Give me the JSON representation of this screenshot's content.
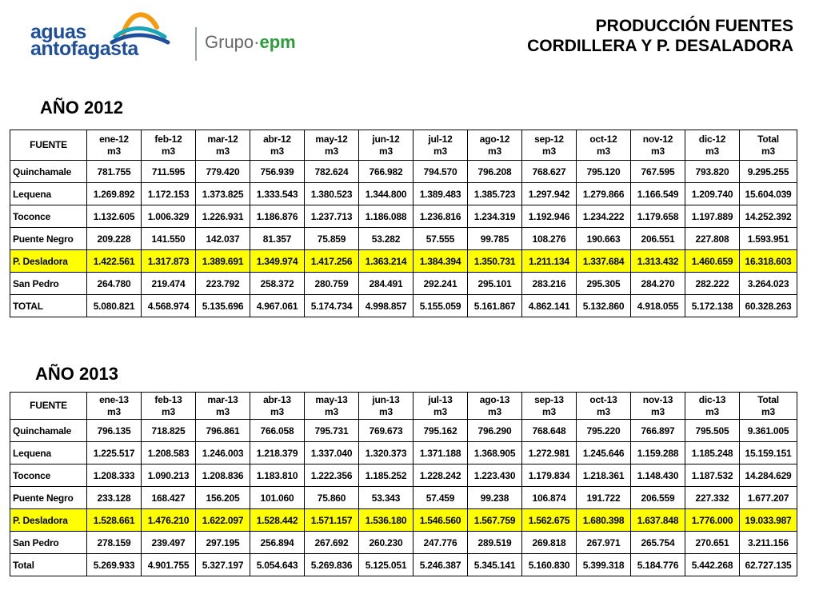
{
  "header": {
    "brand_line1": "aguas",
    "brand_line2": "antofagasta",
    "group_prefix": "Grupo·",
    "group_suffix": "epm",
    "title_line1": "PRODUCCIÓN FUENTES",
    "title_line2": "CORDILLERA Y P. DESALADORA"
  },
  "colors": {
    "highlight": "#ffff00",
    "brand_blue": "#1f4e9c",
    "brand_green": "#2e9c3a",
    "logo_orange": "#f39c12",
    "logo_teal": "#1aa5b8"
  },
  "tables": [
    {
      "year_label": "AÑO 2012",
      "source_header": "FUENTE",
      "unit": "m3",
      "months": [
        "ene-12",
        "feb-12",
        "mar-12",
        "abr-12",
        "may-12",
        "jun-12",
        "jul-12",
        "ago-12",
        "sep-12",
        "oct-12",
        "nov-12",
        "dic-12",
        "Total"
      ],
      "rows": [
        {
          "name": "Quinchamale",
          "values": [
            "781.755",
            "711.595",
            "779.420",
            "756.939",
            "782.624",
            "766.982",
            "794.570",
            "796.208",
            "768.627",
            "795.120",
            "767.595",
            "793.820",
            "9.295.255"
          ]
        },
        {
          "name": "Lequena",
          "values": [
            "1.269.892",
            "1.172.153",
            "1.373.825",
            "1.333.543",
            "1.380.523",
            "1.344.800",
            "1.389.483",
            "1.385.723",
            "1.297.942",
            "1.279.866",
            "1.166.549",
            "1.209.740",
            "15.604.039"
          ]
        },
        {
          "name": "Toconce",
          "values": [
            "1.132.605",
            "1.006.329",
            "1.226.931",
            "1.186.876",
            "1.237.713",
            "1.186.088",
            "1.236.816",
            "1.234.319",
            "1.192.946",
            "1.234.222",
            "1.179.658",
            "1.197.889",
            "14.252.392"
          ]
        },
        {
          "name": "Puente Negro",
          "values": [
            "209.228",
            "141.550",
            "142.037",
            "81.357",
            "75.859",
            "53.282",
            "57.555",
            "99.785",
            "108.276",
            "190.663",
            "206.551",
            "227.808",
            "1.593.951"
          ]
        },
        {
          "name": "P. Desladora",
          "highlight": true,
          "values": [
            "1.422.561",
            "1.317.873",
            "1.389.691",
            "1.349.974",
            "1.417.256",
            "1.363.214",
            "1.384.394",
            "1.350.731",
            "1.211.134",
            "1.337.684",
            "1.313.432",
            "1.460.659",
            "16.318.603"
          ]
        },
        {
          "name": "San Pedro",
          "values": [
            "264.780",
            "219.474",
            "223.792",
            "258.372",
            "280.759",
            "284.491",
            "292.241",
            "295.101",
            "283.216",
            "295.305",
            "284.270",
            "282.222",
            "3.264.023"
          ]
        },
        {
          "name": "TOTAL",
          "values": [
            "5.080.821",
            "4.568.974",
            "5.135.696",
            "4.967.061",
            "5.174.734",
            "4.998.857",
            "5.155.059",
            "5.161.867",
            "4.862.141",
            "5.132.860",
            "4.918.055",
            "5.172.138",
            "60.328.263"
          ]
        }
      ]
    },
    {
      "year_label": "AÑO 2013",
      "source_header": "FUENTE",
      "unit": "m3",
      "months": [
        "ene-13",
        "feb-13",
        "mar-13",
        "abr-13",
        "may-13",
        "jun-13",
        "jul-13",
        "ago-13",
        "sep-13",
        "oct-13",
        "nov-13",
        "dic-13",
        "Total"
      ],
      "rows": [
        {
          "name": "Quinchamale",
          "values": [
            "796.135",
            "718.825",
            "796.861",
            "766.058",
            "795.731",
            "769.673",
            "795.162",
            "796.290",
            "768.648",
            "795.220",
            "766.897",
            "795.505",
            "9.361.005"
          ]
        },
        {
          "name": "Lequena",
          "values": [
            "1.225.517",
            "1.208.583",
            "1.246.003",
            "1.218.379",
            "1.337.040",
            "1.320.373",
            "1.371.188",
            "1.368.905",
            "1.272.981",
            "1.245.646",
            "1.159.288",
            "1.185.248",
            "15.159.151"
          ]
        },
        {
          "name": "Toconce",
          "values": [
            "1.208.333",
            "1.090.213",
            "1.208.836",
            "1.183.810",
            "1.222.356",
            "1.185.252",
            "1.228.242",
            "1.223.430",
            "1.179.834",
            "1.218.361",
            "1.148.430",
            "1.187.532",
            "14.284.629"
          ]
        },
        {
          "name": "Puente Negro",
          "values": [
            "233.128",
            "168.427",
            "156.205",
            "101.060",
            "75.860",
            "53.343",
            "57.459",
            "99.238",
            "106.874",
            "191.722",
            "206.559",
            "227.332",
            "1.677.207"
          ]
        },
        {
          "name": "P. Desladora",
          "highlight": true,
          "values": [
            "1.528.661",
            "1.476.210",
            "1.622.097",
            "1.528.442",
            "1.571.157",
            "1.536.180",
            "1.546.560",
            "1.567.759",
            "1.562.675",
            "1.680.398",
            "1.637.848",
            "1.776.000",
            "19.033.987"
          ]
        },
        {
          "name": "San Pedro",
          "values": [
            "278.159",
            "239.497",
            "297.195",
            "256.894",
            "267.692",
            "260.230",
            "247.776",
            "289.519",
            "269.818",
            "267.971",
            "265.754",
            "270.651",
            "3.211.156"
          ]
        },
        {
          "name": "Total",
          "values": [
            "5.269.933",
            "4.901.755",
            "5.327.197",
            "5.054.643",
            "5.269.836",
            "5.125.051",
            "5.246.387",
            "5.345.141",
            "5.160.830",
            "5.399.318",
            "5.184.776",
            "5.442.268",
            "62.727.135"
          ]
        }
      ]
    }
  ]
}
